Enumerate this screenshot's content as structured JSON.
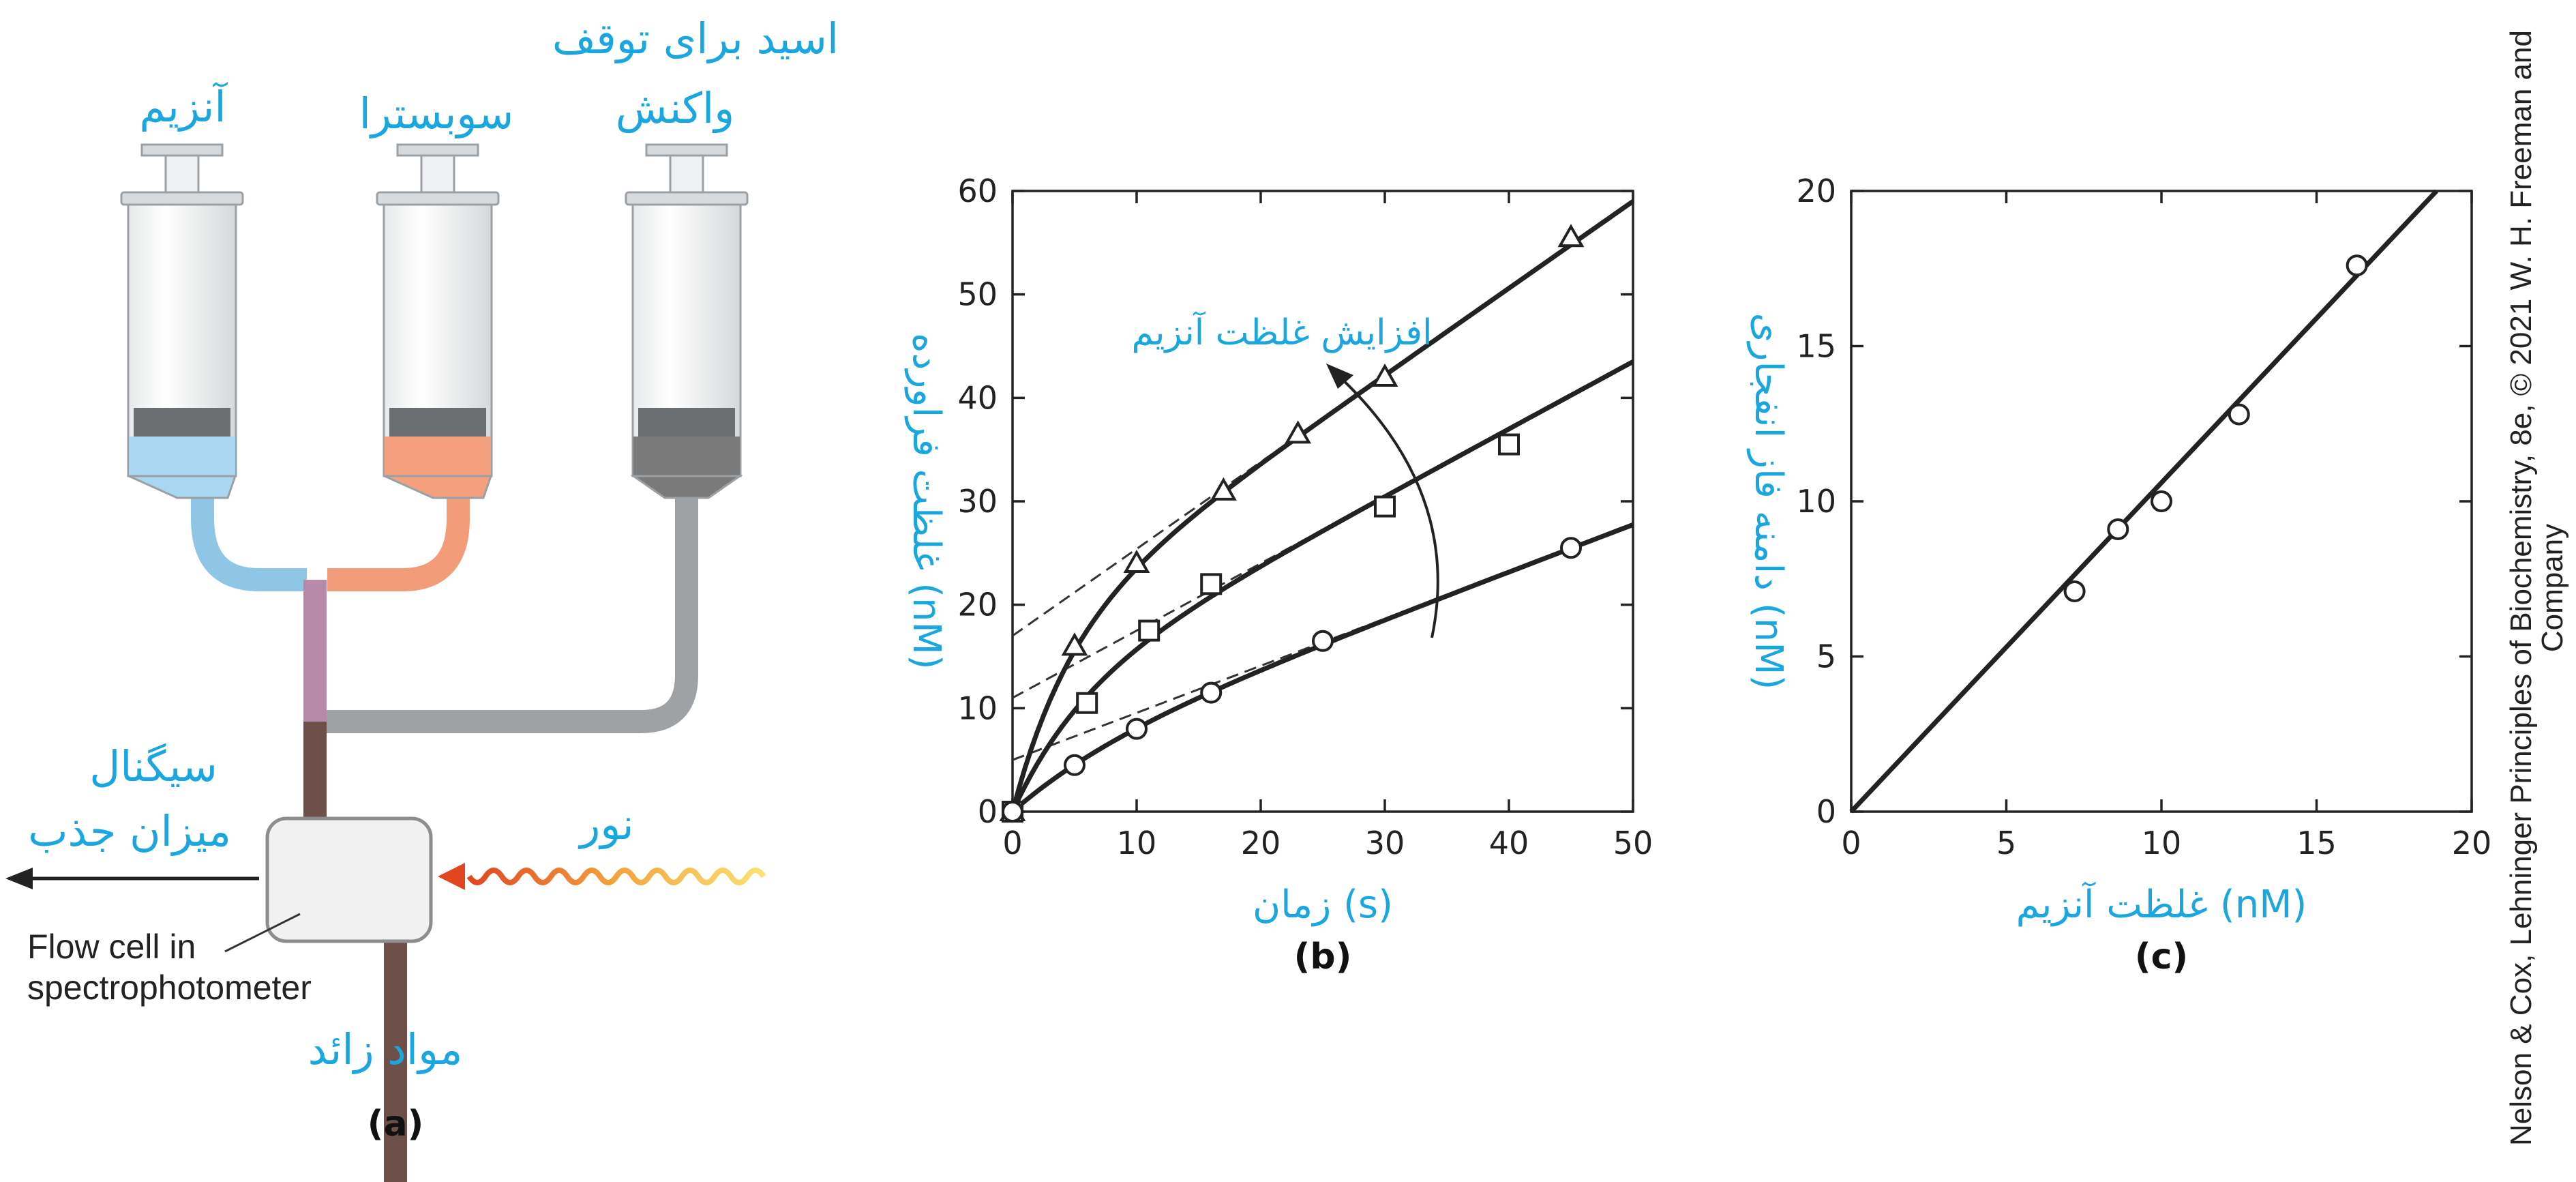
{
  "panel_a": {
    "label_enzyme": "آنزیم",
    "label_substrate": "سوبسترا",
    "label_stop_acid_line1": "اسید برای توقف",
    "label_stop_acid_line2": "واکنش",
    "label_signal_line1": "سیگنال",
    "label_signal_line2": "میزان جذب",
    "label_light": "نور",
    "label_flowcell_line1": "Flow cell in",
    "label_flowcell_line2": "spectrophotometer",
    "label_waste": "مواد زائد",
    "panel_label": "(a)",
    "colors": {
      "enzyme": "#a9d6f0",
      "substrate": "#f4a07e",
      "acid": "#7a7a7a"
    }
  },
  "panel_b": {
    "panel_label": "(b)",
    "annotation": "افزایش غلظت آنزیم"
  },
  "panel_c": {
    "panel_label": "(c)"
  },
  "credit": {
    "line1": "Nelson & Cox, Lehninger Principles of Biochemistry, 8e, © 2021 W. H. Freeman and",
    "line2": "Company"
  },
  "chart_data": [
    {
      "type": "scatter",
      "title": "",
      "xlabel": "زمان (s)",
      "ylabel": "غلظت فراورده (nM)",
      "xlim": [
        0,
        50
      ],
      "ylim": [
        0,
        60
      ],
      "xticks": [
        0,
        10,
        20,
        30,
        40,
        50
      ],
      "yticks": [
        0,
        10,
        20,
        30,
        40,
        50,
        60
      ],
      "grid": false,
      "series": [
        {
          "marker": "triangle",
          "x": [
            0,
            5,
            10,
            17,
            23,
            30,
            45
          ],
          "y": [
            0,
            16,
            24,
            31,
            36.5,
            42,
            55.5
          ],
          "fit_intercept": 17,
          "fit_slope": 0.84
        },
        {
          "marker": "square",
          "x": [
            0,
            6,
            11,
            16,
            30,
            40
          ],
          "y": [
            0,
            10.5,
            17.5,
            22,
            29.5,
            35.5
          ],
          "fit_intercept": 11,
          "fit_slope": 0.65
        },
        {
          "marker": "circle",
          "x": [
            0,
            5,
            10,
            16,
            25,
            45
          ],
          "y": [
            0,
            4.5,
            8,
            11.5,
            16.5,
            25.5
          ],
          "fit_intercept": 5,
          "fit_slope": 0.455
        }
      ]
    },
    {
      "type": "scatter",
      "title": "",
      "xlabel": "غلظت آنزیم (nM)",
      "ylabel": "دامنه فاز انفجاری (nM)",
      "xlim": [
        0,
        20
      ],
      "ylim": [
        0,
        20
      ],
      "xticks": [
        0,
        5,
        10,
        15,
        20
      ],
      "yticks": [
        0,
        5,
        10,
        15,
        20
      ],
      "grid": false,
      "series": [
        {
          "marker": "circle",
          "x": [
            7.2,
            8.6,
            10,
            12.5,
            16.3
          ],
          "y": [
            7.1,
            9.1,
            10,
            12.8,
            17.6
          ],
          "fit_slope": 1.06
        }
      ]
    }
  ]
}
